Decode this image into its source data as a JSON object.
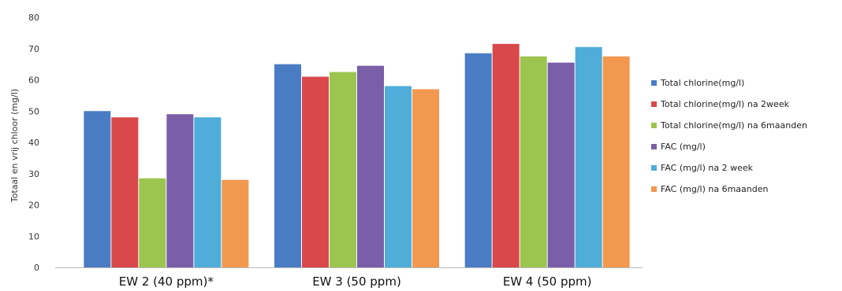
{
  "chart_data": {
    "type": "bar",
    "title": "",
    "xlabel": "",
    "ylabel": "Totaal en vrij chloor (mg/l)",
    "ylim": [
      0,
      80
    ],
    "yticks": [
      0,
      10,
      20,
      30,
      40,
      50,
      60,
      70,
      80
    ],
    "grid": false,
    "legend_position": "right",
    "categories": [
      "EW 2 (40 ppm)*",
      "EW 3 (50 ppm)",
      "EW 4 (50 ppm)"
    ],
    "series": [
      {
        "name": "Total chlorine(mg/l)",
        "color": "#4a7cc4",
        "values": [
          50,
          65,
          68.5
        ]
      },
      {
        "name": "Total chlorine(mg/l) na 2week",
        "color": "#d9484a",
        "values": [
          48,
          61,
          71.5
        ]
      },
      {
        "name": "Total chlorine(mg/l) na 6maanden",
        "color": "#9bc54e",
        "values": [
          28.5,
          62.5,
          67.5
        ]
      },
      {
        "name": "FAC (mg/l)",
        "color": "#7b5ea8",
        "values": [
          49,
          64.5,
          65.5
        ]
      },
      {
        "name": "FAC (mg/l) na 2 week",
        "color": "#4fadd9",
        "values": [
          48,
          58,
          70.5
        ]
      },
      {
        "name": "FAC (mg/l) na 6maanden",
        "color": "#f2994f",
        "values": [
          28,
          57,
          67.5
        ]
      }
    ]
  }
}
